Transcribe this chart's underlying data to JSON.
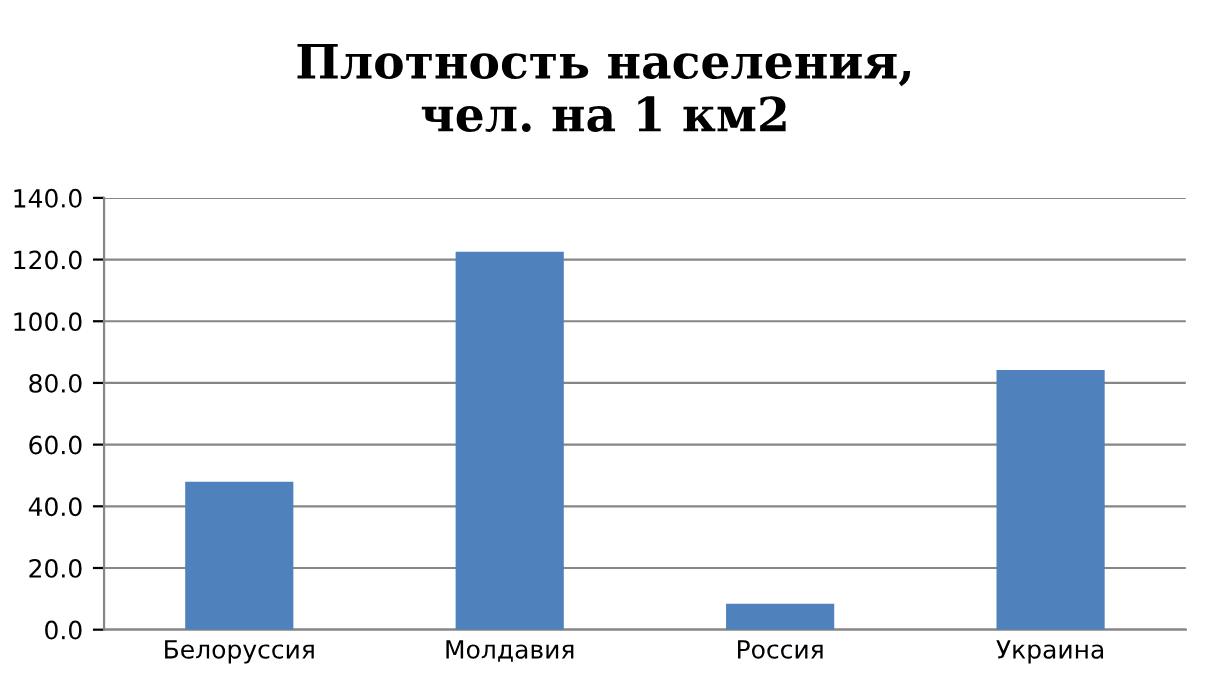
{
  "chart_data": {
    "type": "bar",
    "title": "Плотность населения,\nчел. на 1 км2",
    "categories": [
      "Белоруссия",
      "Молдавия",
      "Россия",
      "Украина"
    ],
    "values": [
      48.0,
      122.5,
      8.4,
      84.2
    ],
    "color": "#4f81bd",
    "ylim": [
      0,
      140
    ],
    "yticks": [
      {
        "value": 0,
        "label": "0.0"
      },
      {
        "value": 20,
        "label": "20.0"
      },
      {
        "value": 40,
        "label": "40.0"
      },
      {
        "value": 60,
        "label": "60.0"
      },
      {
        "value": 80,
        "label": "80.0"
      },
      {
        "value": 100,
        "label": "100.0"
      },
      {
        "value": 120,
        "label": "120.0"
      },
      {
        "value": 140,
        "label": "140.0"
      }
    ],
    "grid": "y",
    "legend": false
  }
}
